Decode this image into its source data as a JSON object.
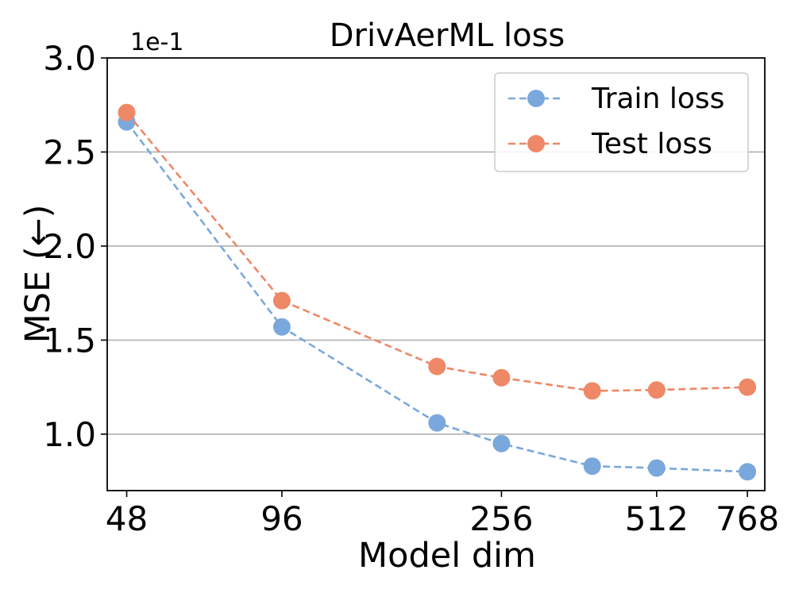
{
  "chart_data": {
    "type": "line",
    "title": "DrivAerML loss",
    "xlabel": "Model dim",
    "ylabel": "MSE (←)",
    "y_scale_label": "1e-1",
    "x_scale": "log",
    "x_ticks": [
      48,
      96,
      256,
      512,
      768
    ],
    "x_tick_labels": [
      "48",
      "96",
      "256",
      "512",
      "768"
    ],
    "y_ticks": [
      1.0,
      1.5,
      2.0,
      2.5,
      3.0
    ],
    "y_tick_labels": [
      "1.0",
      "1.5",
      "2.0",
      "2.5",
      "3.0"
    ],
    "ylim": [
      0.7,
      3.0
    ],
    "xlim": [
      44,
      830
    ],
    "grid": "horizontal",
    "legend_position": "top-right",
    "x": [
      48,
      96,
      192,
      256,
      384,
      512,
      768
    ],
    "series": [
      {
        "name": "Train loss",
        "color": "#7aa8dc",
        "values": [
          2.66,
          1.57,
          1.06,
          0.95,
          0.83,
          0.82,
          0.8
        ]
      },
      {
        "name": "Test loss",
        "color": "#ee8866",
        "values": [
          2.71,
          1.71,
          1.36,
          1.3,
          1.23,
          1.235,
          1.25
        ]
      }
    ]
  }
}
